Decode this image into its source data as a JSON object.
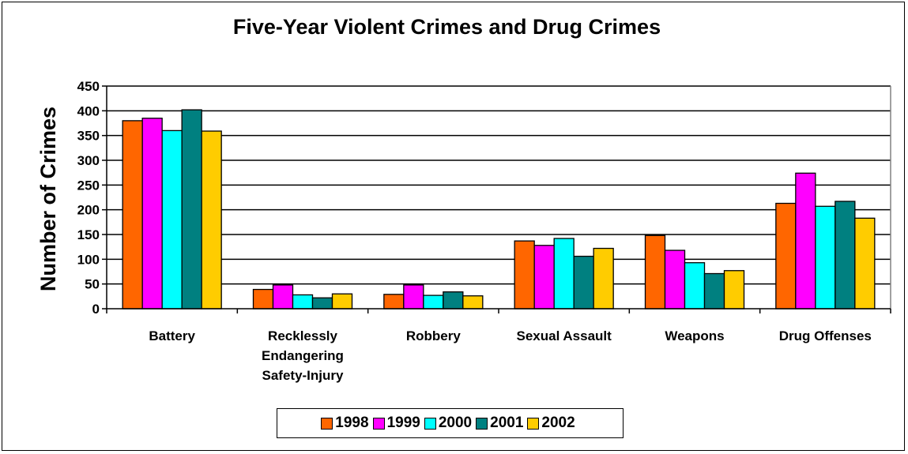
{
  "chart_data": {
    "type": "bar",
    "title": "Five-Year Violent Crimes and Drug Crimes",
    "ylabel": "Number of Crimes",
    "xlabel": "",
    "ylim": [
      0,
      450
    ],
    "yticks": [
      0,
      50,
      100,
      150,
      200,
      250,
      300,
      350,
      400,
      450
    ],
    "grid": true,
    "legend_position": "bottom",
    "categories": [
      [
        "Battery"
      ],
      [
        "Recklessly",
        "Endangering",
        "Safety-Injury"
      ],
      [
        "Robbery"
      ],
      [
        "Sexual Assault"
      ],
      [
        "Weapons"
      ],
      [
        "Drug Offenses"
      ]
    ],
    "series": [
      {
        "name": "1998",
        "color": "#ff6600",
        "values": [
          380,
          39,
          29,
          137,
          148,
          213
        ]
      },
      {
        "name": "1999",
        "color": "#ff00ff",
        "values": [
          385,
          48,
          48,
          128,
          118,
          274
        ]
      },
      {
        "name": "2000",
        "color": "#00ffff",
        "values": [
          360,
          28,
          27,
          142,
          93,
          207
        ]
      },
      {
        "name": "2001",
        "color": "#008080",
        "values": [
          402,
          22,
          34,
          106,
          71,
          217
        ]
      },
      {
        "name": "2002",
        "color": "#ffcc00",
        "values": [
          359,
          30,
          26,
          122,
          77,
          183
        ]
      }
    ]
  }
}
